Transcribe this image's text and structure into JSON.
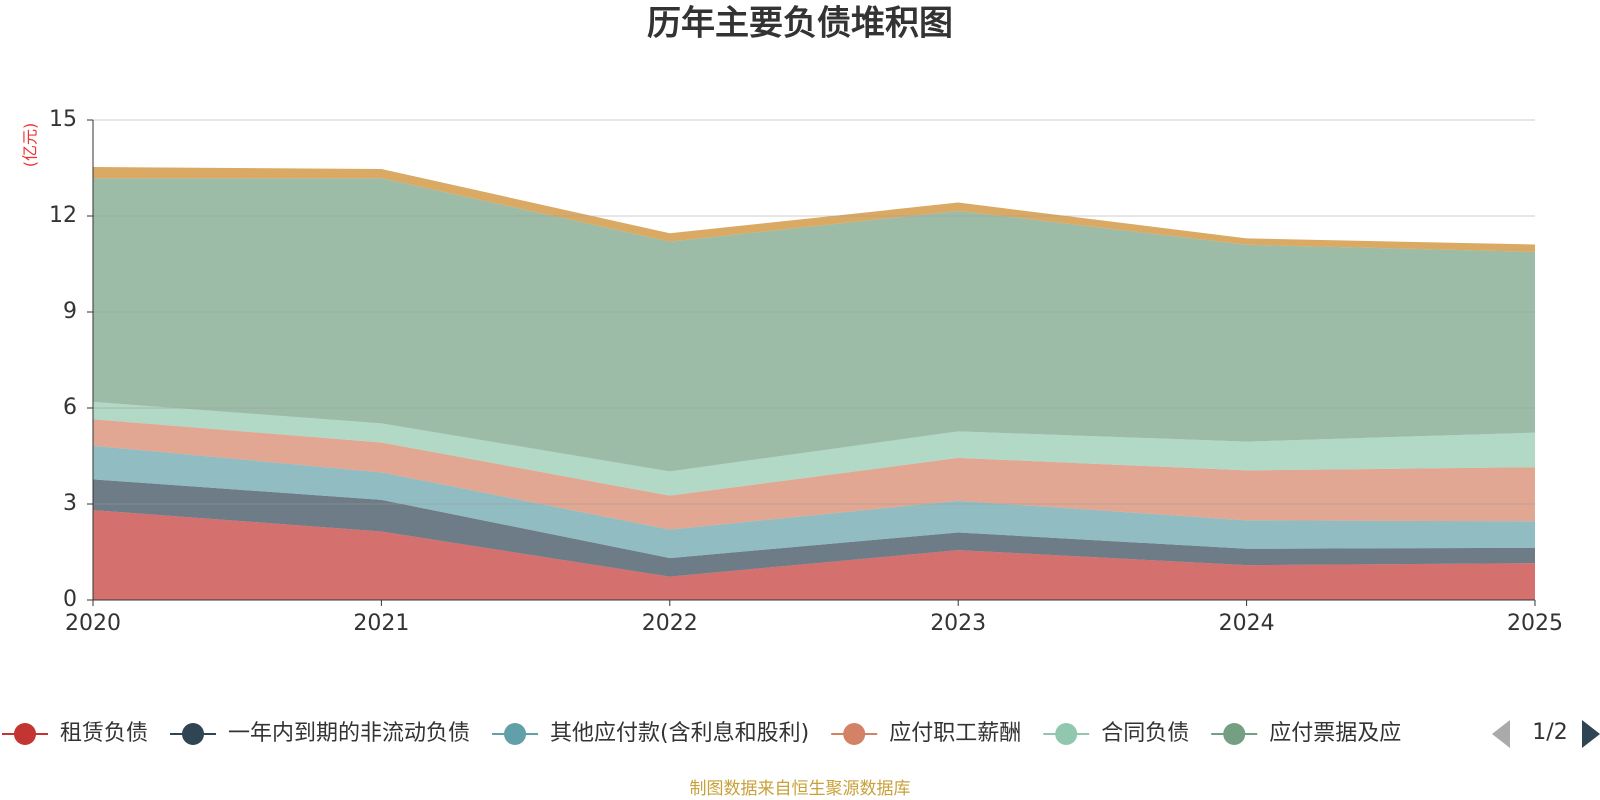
{
  "chart_data": {
    "type": "stacked_area",
    "title": "历年主要负债堆积图",
    "y_label": "(亿元)",
    "categories": [
      "2020",
      "2021",
      "2022",
      "2023",
      "2024",
      "2025"
    ],
    "ylim": [
      0,
      15
    ],
    "yticks": [
      0,
      3,
      6,
      9,
      12,
      15
    ],
    "grid": true,
    "series": [
      {
        "name": "租赁负债",
        "color": "#c23531",
        "values": [
          2.81,
          2.14,
          0.73,
          1.56,
          1.09,
          1.15
        ]
      },
      {
        "name": "一年内到期的非流动负债",
        "color": "#2f4554",
        "values": [
          0.96,
          0.99,
          0.58,
          0.55,
          0.51,
          0.48
        ]
      },
      {
        "name": "其他应付款(含利息和股利)",
        "color": "#61a0a8",
        "values": [
          1.05,
          0.86,
          0.89,
          0.99,
          0.89,
          0.83
        ]
      },
      {
        "name": "应付职工薪酬",
        "color": "#d48265",
        "values": [
          0.83,
          0.93,
          1.06,
          1.34,
          1.56,
          1.69
        ]
      },
      {
        "name": "合同负债",
        "color": "#91c7ae",
        "values": [
          0.54,
          0.6,
          0.76,
          0.83,
          0.9,
          1.08
        ]
      },
      {
        "name": "应付票据及应",
        "color": "#749f83",
        "values": [
          6.99,
          7.66,
          7.18,
          6.89,
          6.15,
          5.65
        ]
      },
      {
        "color": "#ca8622",
        "values": [
          0.35,
          0.29,
          0.26,
          0.26,
          0.2,
          0.23
        ]
      }
    ],
    "legend_page": "1/2",
    "source": "制图数据来自恒生聚源数据库"
  }
}
